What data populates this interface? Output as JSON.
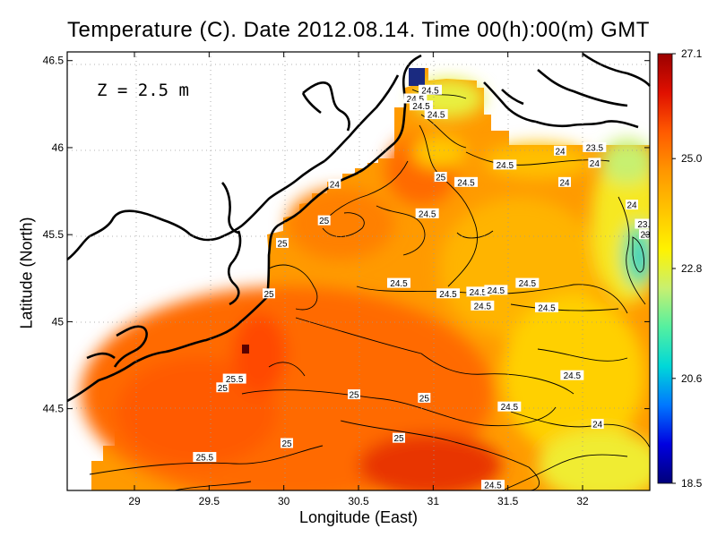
{
  "header": {
    "title": "Temperature (C). Date 2012.08.14. Time 00(h):00(m) GMT"
  },
  "axes": {
    "xlabel": "Longitude (East)",
    "ylabel": "Latitude (North)"
  },
  "map": {
    "depth_label": "Z = 2.5 m"
  },
  "colorbar": {
    "min": 18.5,
    "max": 27.1,
    "ticks": [
      "27.1",
      "25.0",
      "22.8",
      "20.6",
      "18.5"
    ],
    "colors": [
      "#00007a",
      "#0000e0",
      "#0077ff",
      "#00d8d8",
      "#54f0a0",
      "#c8f070",
      "#fff200",
      "#ffc400",
      "#ff9600",
      "#ff5a00",
      "#e01000",
      "#9a0000"
    ]
  },
  "chart_data": {
    "type": "heatmap",
    "title": "Temperature (C). Date 2012.08.14. Time 00(h):00(m) GMT",
    "xlabel": "Longitude (East)",
    "ylabel": "Latitude (North)",
    "xlim": [
      28.55,
      32.45
    ],
    "ylim": [
      44.03,
      46.55
    ],
    "x_ticks": [
      29,
      29.5,
      30,
      30.5,
      31,
      31.5,
      32
    ],
    "y_ticks": [
      44.5,
      45,
      45.5,
      46,
      46.5
    ],
    "x_tick_labels": [
      "29",
      "29.5",
      "30",
      "30.5",
      "31",
      "31.5",
      "32"
    ],
    "y_tick_labels": [
      "44.5",
      "45",
      "45.5",
      "46",
      "46.5"
    ],
    "grid": true,
    "colorbar_range": [
      18.5,
      27.1
    ],
    "depth": "Z = 2.5 m",
    "contour_labels": [
      {
        "text": "24.5",
        "lon": 30.88,
        "lat": 46.28
      },
      {
        "text": "24.5",
        "lon": 30.98,
        "lat": 46.33
      },
      {
        "text": "24.5",
        "lon": 30.92,
        "lat": 46.24
      },
      {
        "text": "24.5",
        "lon": 31.02,
        "lat": 46.19
      },
      {
        "text": "24",
        "lon": 31.85,
        "lat": 45.98
      },
      {
        "text": "23.5",
        "lon": 32.08,
        "lat": 46.0
      },
      {
        "text": "24.5",
        "lon": 31.48,
        "lat": 45.9
      },
      {
        "text": "24",
        "lon": 32.08,
        "lat": 45.91
      },
      {
        "text": "25",
        "lon": 31.05,
        "lat": 45.83
      },
      {
        "text": "24.5",
        "lon": 31.22,
        "lat": 45.8
      },
      {
        "text": "24",
        "lon": 31.88,
        "lat": 45.8
      },
      {
        "text": "24",
        "lon": 30.34,
        "lat": 45.79
      },
      {
        "text": "24",
        "lon": 32.33,
        "lat": 45.67
      },
      {
        "text": "24.5",
        "lon": 30.96,
        "lat": 45.62
      },
      {
        "text": "25",
        "lon": 30.27,
        "lat": 45.58
      },
      {
        "text": "23.",
        "lon": 32.41,
        "lat": 45.56
      },
      {
        "text": "23",
        "lon": 32.42,
        "lat": 45.5
      },
      {
        "text": "25",
        "lon": 29.99,
        "lat": 45.45
      },
      {
        "text": "24.5",
        "lon": 30.77,
        "lat": 45.22
      },
      {
        "text": "24.5",
        "lon": 31.63,
        "lat": 45.22
      },
      {
        "text": "24.5",
        "lon": 31.1,
        "lat": 45.16
      },
      {
        "text": "24.5",
        "lon": 31.3,
        "lat": 45.17
      },
      {
        "text": "24.5",
        "lon": 31.42,
        "lat": 45.18
      },
      {
        "text": "25",
        "lon": 29.9,
        "lat": 45.16
      },
      {
        "text": "24.5",
        "lon": 31.33,
        "lat": 45.09
      },
      {
        "text": "24.5",
        "lon": 31.76,
        "lat": 45.08
      },
      {
        "text": "25.5",
        "lon": 29.67,
        "lat": 44.67
      },
      {
        "text": "25",
        "lon": 29.59,
        "lat": 44.62
      },
      {
        "text": "24.5",
        "lon": 31.93,
        "lat": 44.69
      },
      {
        "text": "25",
        "lon": 30.94,
        "lat": 44.56
      },
      {
        "text": "24.5",
        "lon": 31.51,
        "lat": 44.51
      },
      {
        "text": "25",
        "lon": 30.47,
        "lat": 44.58
      },
      {
        "text": "24",
        "lon": 32.1,
        "lat": 44.41
      },
      {
        "text": "25",
        "lon": 30.77,
        "lat": 44.33
      },
      {
        "text": "25",
        "lon": 30.02,
        "lat": 44.3
      },
      {
        "text": "25.5",
        "lon": 29.47,
        "lat": 44.22
      },
      {
        "text": "24.5",
        "lon": 31.4,
        "lat": 44.06
      }
    ]
  }
}
